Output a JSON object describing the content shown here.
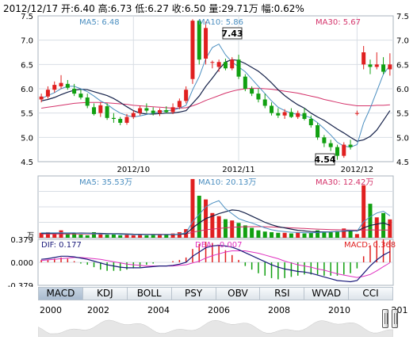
{
  "header": {
    "date": "2012/12/17",
    "open_label": "开:",
    "open": "6.40",
    "high_label": "高:",
    "high": "6.73",
    "low_label": "低:",
    "low": "6.27",
    "close_label": "收:",
    "close": "6.50",
    "volume_label": "量:",
    "volume": "29.71万",
    "change_label": "幅:",
    "change": "0.62%"
  },
  "colors": {
    "up": "#e02020",
    "down": "#11a011",
    "ma5": "#4a8ec0",
    "ma10": "#16224a",
    "ma30": "#d4326a",
    "grid": "#d8dee4",
    "diff": "#1a1a7a",
    "dea": "#e030c0"
  },
  "price_legend": {
    "ma5": "MA5: 6.48",
    "ma10": "MA10: 5.86",
    "ma30": "MA30: 5.67"
  },
  "volume_legend": {
    "ma5": "MA5: 35.53万",
    "ma10": "MA10: 20.13万",
    "ma30": "MA30: 12.42万"
  },
  "macd_legend": {
    "diff": "DIF: 0.177",
    "dea": "DEA: -0.007",
    "macd": "MACD: 0.368"
  },
  "volume_unit": "万",
  "callouts": {
    "high": "7.43",
    "low": "4.54"
  },
  "tabs": [
    "MACD",
    "KDJ",
    "BOLL",
    "PSY",
    "OBV",
    "RSI",
    "WVAD",
    "CCI"
  ],
  "active_tab": 0,
  "timeline_years": [
    "2000",
    "2002",
    "2004",
    "2006",
    "2008",
    "2010",
    "201"
  ],
  "chart_data": {
    "type": "candlestick",
    "price_axis": {
      "ylim": [
        4.5,
        7.5
      ],
      "ticks": [
        "7.5",
        "7.0",
        "6.5",
        "6.0",
        "5.5",
        "5.0",
        "4.5"
      ]
    },
    "x_labels": [
      {
        "label": "2012/10",
        "index": 14
      },
      {
        "label": "2012/11",
        "index": 30
      },
      {
        "label": "2012/12",
        "index": 48
      }
    ],
    "candles": [
      {
        "o": 5.78,
        "h": 5.9,
        "l": 5.72,
        "c": 5.84
      },
      {
        "o": 5.84,
        "h": 6.05,
        "l": 5.8,
        "c": 5.98
      },
      {
        "o": 5.98,
        "h": 6.15,
        "l": 5.92,
        "c": 6.08
      },
      {
        "o": 6.05,
        "h": 6.28,
        "l": 6.0,
        "c": 6.12
      },
      {
        "o": 6.1,
        "h": 6.18,
        "l": 5.98,
        "c": 6.02
      },
      {
        "o": 6.0,
        "h": 6.1,
        "l": 5.85,
        "c": 5.9
      },
      {
        "o": 5.9,
        "h": 5.98,
        "l": 5.78,
        "c": 5.82
      },
      {
        "o": 5.82,
        "h": 5.9,
        "l": 5.6,
        "c": 5.65
      },
      {
        "o": 5.62,
        "h": 5.7,
        "l": 5.45,
        "c": 5.48
      },
      {
        "o": 5.5,
        "h": 5.72,
        "l": 5.42,
        "c": 5.66
      },
      {
        "o": 5.64,
        "h": 5.7,
        "l": 5.36,
        "c": 5.4
      },
      {
        "o": 5.4,
        "h": 5.5,
        "l": 5.3,
        "c": 5.38
      },
      {
        "o": 5.38,
        "h": 5.42,
        "l": 5.25,
        "c": 5.3
      },
      {
        "o": 5.3,
        "h": 5.48,
        "l": 5.26,
        "c": 5.42
      },
      {
        "o": 5.42,
        "h": 5.55,
        "l": 5.38,
        "c": 5.5
      },
      {
        "o": 5.5,
        "h": 5.65,
        "l": 5.45,
        "c": 5.6
      },
      {
        "o": 5.6,
        "h": 5.7,
        "l": 5.5,
        "c": 5.55
      },
      {
        "o": 5.55,
        "h": 5.62,
        "l": 5.45,
        "c": 5.5
      },
      {
        "o": 5.5,
        "h": 5.6,
        "l": 5.44,
        "c": 5.56
      },
      {
        "o": 5.56,
        "h": 5.64,
        "l": 5.5,
        "c": 5.52
      },
      {
        "o": 5.52,
        "h": 5.7,
        "l": 5.48,
        "c": 5.62
      },
      {
        "o": 5.62,
        "h": 5.8,
        "l": 5.58,
        "c": 5.75
      },
      {
        "o": 5.75,
        "h": 6.05,
        "l": 5.7,
        "c": 5.98
      },
      {
        "o": 6.2,
        "h": 7.43,
        "l": 6.1,
        "c": 7.4
      },
      {
        "o": 7.4,
        "h": 7.42,
        "l": 6.5,
        "c": 6.6
      },
      {
        "o": 6.62,
        "h": 7.38,
        "l": 6.5,
        "c": 7.25
      },
      {
        "o": 6.55,
        "h": 6.58,
        "l": 6.42,
        "c": 6.55
      },
      {
        "o": 6.45,
        "h": 6.6,
        "l": 6.35,
        "c": 6.55
      },
      {
        "o": 6.55,
        "h": 6.62,
        "l": 6.38,
        "c": 6.42
      },
      {
        "o": 6.42,
        "h": 6.65,
        "l": 6.38,
        "c": 6.6
      },
      {
        "o": 6.6,
        "h": 6.7,
        "l": 6.2,
        "c": 6.25
      },
      {
        "o": 6.25,
        "h": 6.3,
        "l": 5.95,
        "c": 6.0
      },
      {
        "o": 6.0,
        "h": 6.05,
        "l": 5.85,
        "c": 5.9
      },
      {
        "o": 5.9,
        "h": 6.0,
        "l": 5.72,
        "c": 5.78
      },
      {
        "o": 5.78,
        "h": 5.9,
        "l": 5.6,
        "c": 5.65
      },
      {
        "o": 5.65,
        "h": 5.72,
        "l": 5.45,
        "c": 5.5
      },
      {
        "o": 5.5,
        "h": 5.6,
        "l": 5.4,
        "c": 5.45
      },
      {
        "o": 5.45,
        "h": 5.58,
        "l": 5.38,
        "c": 5.52
      },
      {
        "o": 5.52,
        "h": 5.6,
        "l": 5.4,
        "c": 5.42
      },
      {
        "o": 5.42,
        "h": 5.55,
        "l": 5.38,
        "c": 5.5
      },
      {
        "o": 5.5,
        "h": 5.6,
        "l": 5.35,
        "c": 5.38
      },
      {
        "o": 5.38,
        "h": 5.45,
        "l": 5.2,
        "c": 5.25
      },
      {
        "o": 5.25,
        "h": 5.3,
        "l": 4.95,
        "c": 5.0
      },
      {
        "o": 5.0,
        "h": 5.05,
        "l": 4.8,
        "c": 4.88
      },
      {
        "o": 4.88,
        "h": 4.95,
        "l": 4.72,
        "c": 4.8
      },
      {
        "o": 4.8,
        "h": 4.85,
        "l": 4.54,
        "c": 4.62
      },
      {
        "o": 4.62,
        "h": 4.9,
        "l": 4.58,
        "c": 4.85
      },
      {
        "o": 4.85,
        "h": 4.95,
        "l": 4.75,
        "c": 4.8
      },
      {
        "o": 5.5,
        "h": 5.55,
        "l": 5.45,
        "c": 5.5
      },
      {
        "o": 6.5,
        "h": 6.88,
        "l": 6.4,
        "c": 6.75
      },
      {
        "o": 6.5,
        "h": 6.6,
        "l": 6.3,
        "c": 6.45
      },
      {
        "o": 6.45,
        "h": 6.75,
        "l": 6.4,
        "c": 6.5
      },
      {
        "o": 6.5,
        "h": 6.65,
        "l": 6.3,
        "c": 6.35
      },
      {
        "o": 6.4,
        "h": 6.73,
        "l": 6.27,
        "c": 6.5
      }
    ],
    "ma5": [
      5.8,
      5.86,
      5.92,
      6.0,
      6.05,
      6.05,
      6.0,
      5.94,
      5.85,
      5.75,
      5.68,
      5.58,
      5.5,
      5.45,
      5.42,
      5.44,
      5.47,
      5.5,
      5.53,
      5.55,
      5.56,
      5.6,
      5.66,
      5.98,
      6.25,
      6.62,
      6.85,
      6.92,
      6.7,
      6.55,
      6.45,
      6.35,
      6.2,
      6.05,
      5.9,
      5.75,
      5.62,
      5.55,
      5.5,
      5.47,
      5.45,
      5.4,
      5.3,
      5.18,
      5.05,
      4.9,
      4.82,
      4.8,
      4.85,
      5.3,
      5.6,
      5.95,
      6.3,
      6.48
    ],
    "ma10": [
      5.75,
      5.78,
      5.82,
      5.88,
      5.93,
      5.97,
      5.99,
      5.98,
      5.94,
      5.9,
      5.86,
      5.8,
      5.72,
      5.63,
      5.55,
      5.5,
      5.48,
      5.48,
      5.49,
      5.5,
      5.5,
      5.52,
      5.55,
      5.7,
      5.85,
      6.05,
      6.22,
      6.4,
      6.55,
      6.6,
      6.58,
      6.52,
      6.44,
      6.36,
      6.25,
      6.12,
      5.98,
      5.86,
      5.76,
      5.67,
      5.6,
      5.5,
      5.42,
      5.35,
      5.26,
      5.17,
      5.09,
      5.0,
      4.92,
      4.95,
      5.02,
      5.15,
      5.35,
      5.55
    ],
    "ma30": [
      5.6,
      5.62,
      5.64,
      5.66,
      5.68,
      5.7,
      5.71,
      5.72,
      5.72,
      5.72,
      5.71,
      5.7,
      5.69,
      5.68,
      5.66,
      5.65,
      5.64,
      5.63,
      5.62,
      5.61,
      5.6,
      5.6,
      5.61,
      5.65,
      5.7,
      5.76,
      5.81,
      5.86,
      5.91,
      5.95,
      5.98,
      6.0,
      6.01,
      6.01,
      6.0,
      5.99,
      5.97,
      5.95,
      5.93,
      5.91,
      5.88,
      5.85,
      5.82,
      5.78,
      5.75,
      5.72,
      5.69,
      5.67,
      5.65,
      5.65,
      5.65,
      5.66,
      5.66,
      5.67
    ],
    "volume": {
      "ylim": [
        0,
        100
      ],
      "values": [
        8,
        9,
        6,
        12,
        6,
        7,
        5,
        4,
        9,
        6,
        5,
        6,
        4,
        5,
        4,
        6,
        4,
        5,
        6,
        5,
        7,
        9,
        14,
        95,
        68,
        62,
        40,
        35,
        30,
        28,
        24,
        20,
        16,
        12,
        10,
        9,
        8,
        8,
        7,
        9,
        7,
        8,
        12,
        10,
        9,
        11,
        15,
        12,
        6,
        85,
        55,
        33,
        40,
        29.71
      ],
      "ma5": [
        8,
        8,
        8,
        8.2,
        8,
        8,
        7,
        7,
        6.5,
        6.2,
        6,
        6,
        5.5,
        5.2,
        5,
        5,
        5,
        5,
        5,
        5.2,
        5.6,
        6.2,
        8,
        26,
        38,
        50,
        56,
        60,
        47,
        39,
        31,
        27,
        24,
        20,
        16,
        13,
        11,
        10,
        9,
        8.5,
        8.2,
        8,
        8.5,
        9,
        9.2,
        10,
        11,
        12,
        10.5,
        26,
        34,
        40,
        43,
        35.53
      ],
      "ma10": [
        7,
        7.2,
        7.3,
        7.5,
        7.6,
        7.7,
        7.6,
        7.4,
        7.2,
        7,
        6.8,
        6.6,
        6.4,
        6.1,
        5.8,
        5.6,
        5.4,
        5.2,
        5.1,
        5.1,
        5.2,
        5.6,
        6.6,
        16,
        24,
        31,
        35,
        39,
        42,
        45,
        44,
        40,
        35,
        30,
        25,
        21,
        18,
        16,
        14,
        12,
        11,
        10,
        9.6,
        9.5,
        9.6,
        10,
        10.6,
        11.2,
        11,
        16,
        20,
        22,
        24,
        20.13
      ],
      "ma30": [
        6,
        6,
        6,
        6.1,
        6.1,
        6.1,
        6.1,
        6,
        6,
        6,
        6,
        5.9,
        5.9,
        5.9,
        5.8,
        5.8,
        5.8,
        5.8,
        5.8,
        5.8,
        5.8,
        5.9,
        6.2,
        9,
        11,
        13,
        14,
        15,
        16,
        17,
        17.5,
        17.8,
        18,
        18,
        17.8,
        17.5,
        17,
        16.5,
        16,
        15.5,
        15,
        14.5,
        14,
        13.6,
        13.2,
        12.9,
        12.7,
        12.5,
        12.3,
        12.6,
        12.8,
        12.5,
        12.6,
        12.42
      ]
    },
    "macd": {
      "ylim": [
        -0.379,
        0.379
      ],
      "ticks": [
        "0.379",
        "0.000",
        "-0.379"
      ],
      "dif": [
        0.05,
        0.06,
        0.08,
        0.1,
        0.1,
        0.09,
        0.07,
        0.05,
        0.02,
        -0.01,
        -0.04,
        -0.06,
        -0.08,
        -0.09,
        -0.09,
        -0.09,
        -0.08,
        -0.07,
        -0.06,
        -0.06,
        -0.05,
        -0.03,
        0.0,
        0.1,
        0.17,
        0.24,
        0.27,
        0.28,
        0.27,
        0.25,
        0.21,
        0.16,
        0.11,
        0.06,
        0.01,
        -0.04,
        -0.08,
        -0.11,
        -0.13,
        -0.15,
        -0.16,
        -0.18,
        -0.21,
        -0.24,
        -0.27,
        -0.3,
        -0.31,
        -0.32,
        -0.3,
        -0.18,
        -0.06,
        0.04,
        0.12,
        0.177
      ],
      "dea": [
        0.03,
        0.04,
        0.05,
        0.06,
        0.07,
        0.08,
        0.08,
        0.07,
        0.06,
        0.05,
        0.03,
        0.01,
        -0.01,
        -0.03,
        -0.04,
        -0.05,
        -0.06,
        -0.06,
        -0.06,
        -0.06,
        -0.06,
        -0.05,
        -0.04,
        -0.01,
        0.02,
        0.07,
        0.11,
        0.14,
        0.17,
        0.19,
        0.19,
        0.19,
        0.17,
        0.15,
        0.12,
        0.09,
        0.06,
        0.02,
        -0.01,
        -0.04,
        -0.06,
        -0.08,
        -0.11,
        -0.13,
        -0.16,
        -0.19,
        -0.21,
        -0.23,
        -0.25,
        -0.23,
        -0.2,
        -0.14,
        -0.07,
        -0.007
      ],
      "hist": [
        0.04,
        0.04,
        0.06,
        0.08,
        0.06,
        0.02,
        -0.02,
        -0.04,
        -0.08,
        -0.12,
        -0.14,
        -0.14,
        -0.14,
        -0.12,
        -0.1,
        -0.08,
        -0.04,
        -0.02,
        0,
        0,
        0.02,
        0.04,
        0.08,
        0.22,
        0.3,
        0.34,
        0.32,
        0.28,
        0.2,
        0.12,
        0.04,
        -0.06,
        -0.12,
        -0.18,
        -0.22,
        -0.26,
        -0.28,
        -0.26,
        -0.24,
        -0.22,
        -0.2,
        -0.2,
        -0.2,
        -0.22,
        -0.22,
        -0.22,
        -0.2,
        -0.18,
        -0.1,
        0.1,
        0.28,
        0.36,
        0.38,
        0.368
      ]
    }
  }
}
